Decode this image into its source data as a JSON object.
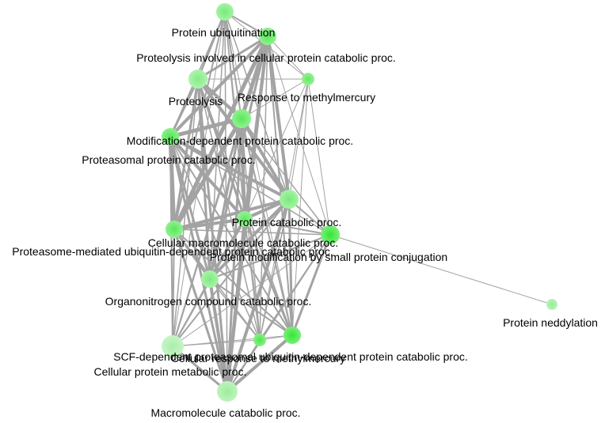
{
  "network": {
    "node_color": "#33e633",
    "edge_color": "#a3a3a3",
    "nodes": [
      {
        "id": "n1",
        "label": "Protein ubiquitination",
        "shade": 0.55
      },
      {
        "id": "n2",
        "label": "Proteolysis involved in cellular protein catabolic proc.",
        "shade": 0.75
      },
      {
        "id": "n3",
        "label": "Proteolysis",
        "shade": 0.45
      },
      {
        "id": "n4",
        "label": "Response to methylmercury",
        "shade": 0.7
      },
      {
        "id": "n5",
        "label": "Modification-dependent protein catabolic proc.",
        "shade": 0.75
      },
      {
        "id": "n6",
        "label": "Proteasomal protein catabolic proc.",
        "shade": 0.8
      },
      {
        "id": "n7",
        "label": "Protein catabolic proc.",
        "shade": 0.55
      },
      {
        "id": "n8",
        "label": "Cellular macromolecule catabolic proc.",
        "shade": 0.7
      },
      {
        "id": "n9",
        "label": "Proteasome-mediated ubiquitin-dependent protein catabolic proc.",
        "shade": 0.75
      },
      {
        "id": "n10",
        "label": "Protein modification by small protein conjugation",
        "shade": 1.0
      },
      {
        "id": "n11",
        "label": "Organonitrogen compound catabolic proc.",
        "shade": 0.5
      },
      {
        "id": "n12",
        "label": "Protein neddylation",
        "shade": 0.35
      },
      {
        "id": "n13",
        "label": "SCF-dependent proteasomal ubiquitin-dependent protein catabolic proc.",
        "shade": 0.2
      },
      {
        "id": "n14",
        "label": "Cellular response to methylmercury",
        "shade": 0.85
      },
      {
        "id": "n15",
        "label": "Cellular protein metabolic proc.",
        "shade": 1.0
      },
      {
        "id": "n16",
        "label": "Macromolecule catabolic proc.",
        "shade": 0.3
      }
    ],
    "edges": [
      [
        "n1",
        "n2",
        2
      ],
      [
        "n1",
        "n3",
        2.5
      ],
      [
        "n1",
        "n5",
        2
      ],
      [
        "n1",
        "n6",
        1.5
      ],
      [
        "n1",
        "n7",
        1.5
      ],
      [
        "n1",
        "n8",
        1.5
      ],
      [
        "n1",
        "n9",
        2
      ],
      [
        "n1",
        "n11",
        1.5
      ],
      [
        "n1",
        "n13",
        1
      ],
      [
        "n1",
        "n14",
        1
      ],
      [
        "n1",
        "n15",
        1
      ],
      [
        "n1",
        "n16",
        1.5
      ],
      [
        "n1",
        "n4",
        1
      ],
      [
        "n2",
        "n3",
        3
      ],
      [
        "n2",
        "n5",
        5
      ],
      [
        "n2",
        "n6",
        4
      ],
      [
        "n2",
        "n7",
        4
      ],
      [
        "n2",
        "n8",
        4
      ],
      [
        "n2",
        "n9",
        5
      ],
      [
        "n2",
        "n11",
        3
      ],
      [
        "n2",
        "n13",
        2
      ],
      [
        "n2",
        "n14",
        1.5
      ],
      [
        "n2",
        "n15",
        2
      ],
      [
        "n2",
        "n16",
        3
      ],
      [
        "n2",
        "n4",
        1
      ],
      [
        "n2",
        "n10",
        1
      ],
      [
        "n3",
        "n5",
        4
      ],
      [
        "n3",
        "n6",
        3
      ],
      [
        "n3",
        "n7",
        4
      ],
      [
        "n3",
        "n8",
        3
      ],
      [
        "n3",
        "n9",
        3
      ],
      [
        "n3",
        "n11",
        3
      ],
      [
        "n3",
        "n13",
        1.5
      ],
      [
        "n3",
        "n14",
        1.5
      ],
      [
        "n3",
        "n15",
        1.5
      ],
      [
        "n3",
        "n16",
        3
      ],
      [
        "n3",
        "n4",
        1
      ],
      [
        "n4",
        "n5",
        1
      ],
      [
        "n4",
        "n7",
        1
      ],
      [
        "n4",
        "n8",
        1
      ],
      [
        "n4",
        "n10",
        1
      ],
      [
        "n4",
        "n14",
        1
      ],
      [
        "n4",
        "n15",
        1
      ],
      [
        "n5",
        "n6",
        5
      ],
      [
        "n5",
        "n7",
        4
      ],
      [
        "n5",
        "n8",
        4
      ],
      [
        "n5",
        "n9",
        5
      ],
      [
        "n5",
        "n11",
        3
      ],
      [
        "n5",
        "n13",
        2
      ],
      [
        "n5",
        "n14",
        1.5
      ],
      [
        "n5",
        "n15",
        2
      ],
      [
        "n5",
        "n16",
        3
      ],
      [
        "n5",
        "n10",
        1.5
      ],
      [
        "n6",
        "n7",
        4
      ],
      [
        "n6",
        "n8",
        4
      ],
      [
        "n6",
        "n9",
        5
      ],
      [
        "n6",
        "n11",
        3
      ],
      [
        "n6",
        "n13",
        2
      ],
      [
        "n6",
        "n14",
        1.5
      ],
      [
        "n6",
        "n15",
        2
      ],
      [
        "n6",
        "n16",
        3
      ],
      [
        "n6",
        "n10",
        1.5
      ],
      [
        "n7",
        "n8",
        4
      ],
      [
        "n7",
        "n9",
        4
      ],
      [
        "n7",
        "n11",
        4
      ],
      [
        "n7",
        "n13",
        2
      ],
      [
        "n7",
        "n14",
        1.5
      ],
      [
        "n7",
        "n15",
        3
      ],
      [
        "n7",
        "n16",
        4
      ],
      [
        "n7",
        "n10",
        2
      ],
      [
        "n8",
        "n9",
        4
      ],
      [
        "n8",
        "n11",
        4
      ],
      [
        "n8",
        "n13",
        2
      ],
      [
        "n8",
        "n14",
        1.5
      ],
      [
        "n8",
        "n15",
        3
      ],
      [
        "n8",
        "n16",
        4
      ],
      [
        "n8",
        "n10",
        2
      ],
      [
        "n9",
        "n11",
        3
      ],
      [
        "n9",
        "n13",
        2
      ],
      [
        "n9",
        "n14",
        1.5
      ],
      [
        "n9",
        "n15",
        2
      ],
      [
        "n9",
        "n16",
        3
      ],
      [
        "n9",
        "n10",
        1.5
      ],
      [
        "n10",
        "n11",
        2
      ],
      [
        "n10",
        "n12",
        1
      ],
      [
        "n10",
        "n13",
        1
      ],
      [
        "n10",
        "n14",
        1.5
      ],
      [
        "n10",
        "n15",
        3
      ],
      [
        "n10",
        "n16",
        2
      ],
      [
        "n11",
        "n13",
        2
      ],
      [
        "n11",
        "n14",
        1.5
      ],
      [
        "n11",
        "n15",
        2
      ],
      [
        "n11",
        "n16",
        4
      ],
      [
        "n13",
        "n14",
        1
      ],
      [
        "n13",
        "n15",
        1
      ],
      [
        "n13",
        "n16",
        3
      ],
      [
        "n14",
        "n15",
        1
      ],
      [
        "n14",
        "n16",
        1.5
      ],
      [
        "n15",
        "n16",
        4
      ]
    ]
  }
}
